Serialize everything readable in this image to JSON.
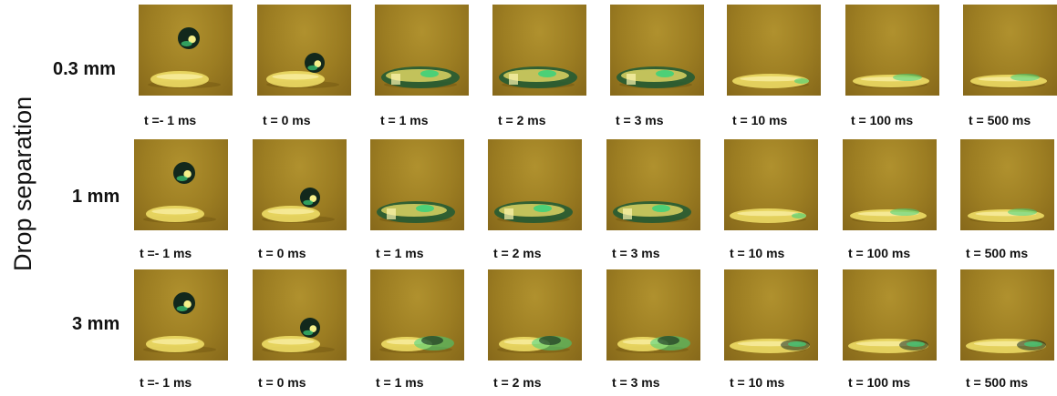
{
  "axis_label": "Drop separation",
  "rows": [
    {
      "label": "0.3 mm",
      "frames": [
        {
          "time": "t =- 1 ms",
          "stage": "falling"
        },
        {
          "time": "t = 0 ms",
          "stage": "contact"
        },
        {
          "time": "t = 1 ms",
          "stage": "merging"
        },
        {
          "time": "t = 2 ms",
          "stage": "merging"
        },
        {
          "time": "t = 3 ms",
          "stage": "merging"
        },
        {
          "time": "t = 10 ms",
          "stage": "relaxing"
        },
        {
          "time": "t = 100 ms",
          "stage": "settled"
        },
        {
          "time": "t = 500 ms",
          "stage": "settled"
        }
      ]
    },
    {
      "label": "1 mm",
      "frames": [
        {
          "time": "t =- 1 ms",
          "stage": "falling"
        },
        {
          "time": "t = 0 ms",
          "stage": "contact"
        },
        {
          "time": "t = 1 ms",
          "stage": "merging"
        },
        {
          "time": "t = 2 ms",
          "stage": "merging"
        },
        {
          "time": "t = 3 ms",
          "stage": "merging"
        },
        {
          "time": "t = 10 ms",
          "stage": "relaxing"
        },
        {
          "time": "t = 100 ms",
          "stage": "settled"
        },
        {
          "time": "t = 500 ms",
          "stage": "settled"
        }
      ]
    },
    {
      "label": "3 mm",
      "frames": [
        {
          "time": "t =- 1 ms",
          "stage": "falling"
        },
        {
          "time": "t = 0 ms",
          "stage": "contact"
        },
        {
          "time": "t = 1 ms",
          "stage": "side-merge"
        },
        {
          "time": "t = 2 ms",
          "stage": "side-merge"
        },
        {
          "time": "t = 3 ms",
          "stage": "side-merge"
        },
        {
          "time": "t = 10 ms",
          "stage": "elongated"
        },
        {
          "time": "t = 100 ms",
          "stage": "elongated"
        },
        {
          "time": "t = 500 ms",
          "stage": "elongated"
        }
      ]
    }
  ],
  "colors": {
    "background": "#9c7d22",
    "drop_dark": "#12281c",
    "drop_highlight": "#3fd17a",
    "lens": "#f3e36a"
  }
}
